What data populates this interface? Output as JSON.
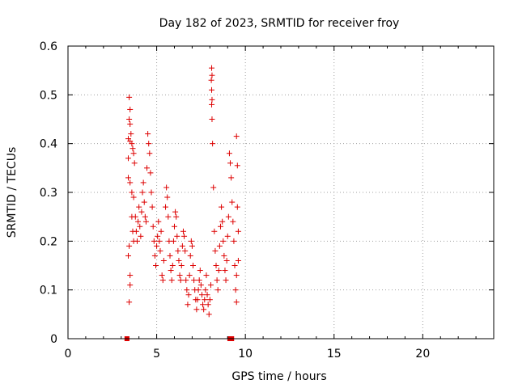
{
  "chart_data": {
    "type": "scatter",
    "title": "Day 182 of 2023, SRMTID for receiver froy",
    "xlabel": "GPS time / hours",
    "ylabel": "SRMTID / TECUs",
    "xlim": [
      0,
      24
    ],
    "ylim": [
      0,
      0.6
    ],
    "xticks": [
      0,
      5,
      10,
      15,
      20
    ],
    "xtick_labels": [
      "0",
      "5",
      "10",
      "15",
      "20"
    ],
    "yticks": [
      0,
      0.1,
      0.2,
      0.3,
      0.4,
      0.5,
      0.6
    ],
    "ytick_labels": [
      "0",
      "0.1",
      "0.2",
      "0.3",
      "0.4",
      "0.5",
      "0.6"
    ],
    "grid": true,
    "marker": "+",
    "colors": {
      "series": "#dd0000",
      "grid": "#a0a0a0",
      "axis": "#000000"
    },
    "series": [
      {
        "name": "SRMTID",
        "points": [
          [
            3.4,
            0.37
          ],
          [
            3.45,
            0.495
          ],
          [
            3.5,
            0.47
          ],
          [
            3.45,
            0.45
          ],
          [
            3.5,
            0.44
          ],
          [
            3.55,
            0.42
          ],
          [
            3.4,
            0.41
          ],
          [
            3.5,
            0.405
          ],
          [
            3.6,
            0.4
          ],
          [
            3.65,
            0.39
          ],
          [
            3.7,
            0.38
          ],
          [
            3.75,
            0.36
          ],
          [
            3.4,
            0.33
          ],
          [
            3.5,
            0.32
          ],
          [
            3.6,
            0.3
          ],
          [
            3.7,
            0.29
          ],
          [
            3.45,
            0.19
          ],
          [
            3.4,
            0.17
          ],
          [
            3.5,
            0.13
          ],
          [
            3.5,
            0.11
          ],
          [
            3.45,
            0.075
          ],
          [
            3.6,
            0.25
          ],
          [
            3.65,
            0.22
          ],
          [
            3.7,
            0.2
          ],
          [
            3.8,
            0.25
          ],
          [
            3.85,
            0.22
          ],
          [
            3.9,
            0.2
          ],
          [
            3.95,
            0.24
          ],
          [
            4.0,
            0.27
          ],
          [
            4.05,
            0.23
          ],
          [
            4.1,
            0.21
          ],
          [
            4.15,
            0.26
          ],
          [
            4.2,
            0.3
          ],
          [
            4.25,
            0.32
          ],
          [
            4.3,
            0.28
          ],
          [
            4.35,
            0.25
          ],
          [
            4.4,
            0.24
          ],
          [
            4.45,
            0.35
          ],
          [
            4.5,
            0.42
          ],
          [
            4.55,
            0.4
          ],
          [
            4.6,
            0.38
          ],
          [
            4.65,
            0.34
          ],
          [
            4.7,
            0.3
          ],
          [
            4.75,
            0.27
          ],
          [
            4.8,
            0.23
          ],
          [
            4.85,
            0.2
          ],
          [
            4.9,
            0.17
          ],
          [
            4.95,
            0.15
          ],
          [
            5.0,
            0.19
          ],
          [
            5.05,
            0.21
          ],
          [
            5.1,
            0.24
          ],
          [
            5.15,
            0.2
          ],
          [
            5.2,
            0.18
          ],
          [
            5.25,
            0.22
          ],
          [
            5.3,
            0.13
          ],
          [
            5.35,
            0.12
          ],
          [
            5.4,
            0.16
          ],
          [
            5.5,
            0.27
          ],
          [
            5.55,
            0.31
          ],
          [
            5.6,
            0.29
          ],
          [
            5.65,
            0.25
          ],
          [
            5.7,
            0.2
          ],
          [
            5.75,
            0.17
          ],
          [
            5.8,
            0.14
          ],
          [
            5.85,
            0.12
          ],
          [
            5.9,
            0.15
          ],
          [
            5.95,
            0.2
          ],
          [
            6.0,
            0.23
          ],
          [
            6.05,
            0.26
          ],
          [
            6.1,
            0.25
          ],
          [
            6.15,
            0.21
          ],
          [
            6.2,
            0.18
          ],
          [
            6.25,
            0.16
          ],
          [
            6.3,
            0.13
          ],
          [
            6.35,
            0.12
          ],
          [
            6.4,
            0.15
          ],
          [
            6.45,
            0.19
          ],
          [
            6.5,
            0.22
          ],
          [
            6.55,
            0.21
          ],
          [
            6.6,
            0.18
          ],
          [
            6.65,
            0.12
          ],
          [
            6.7,
            0.1
          ],
          [
            6.75,
            0.07
          ],
          [
            6.8,
            0.09
          ],
          [
            6.85,
            0.13
          ],
          [
            6.9,
            0.17
          ],
          [
            6.95,
            0.2
          ],
          [
            7.0,
            0.19
          ],
          [
            7.05,
            0.15
          ],
          [
            7.1,
            0.12
          ],
          [
            7.15,
            0.1
          ],
          [
            7.2,
            0.08
          ],
          [
            7.25,
            0.06
          ],
          [
            7.3,
            0.08
          ],
          [
            7.35,
            0.1
          ],
          [
            7.4,
            0.12
          ],
          [
            7.45,
            0.14
          ],
          [
            7.5,
            0.11
          ],
          [
            7.55,
            0.09
          ],
          [
            7.6,
            0.07
          ],
          [
            7.65,
            0.06
          ],
          [
            7.7,
            0.08
          ],
          [
            7.75,
            0.1
          ],
          [
            7.8,
            0.13
          ],
          [
            7.85,
            0.09
          ],
          [
            7.9,
            0.07
          ],
          [
            7.95,
            0.05
          ],
          [
            8.0,
            0.08
          ],
          [
            8.05,
            0.11
          ],
          [
            8.1,
            0.555
          ],
          [
            8.12,
            0.54
          ],
          [
            8.08,
            0.53
          ],
          [
            8.1,
            0.51
          ],
          [
            8.12,
            0.49
          ],
          [
            8.1,
            0.48
          ],
          [
            8.12,
            0.45
          ],
          [
            8.15,
            0.4
          ],
          [
            8.2,
            0.31
          ],
          [
            8.25,
            0.22
          ],
          [
            8.3,
            0.18
          ],
          [
            8.35,
            0.15
          ],
          [
            8.4,
            0.12
          ],
          [
            8.45,
            0.1
          ],
          [
            8.5,
            0.14
          ],
          [
            8.55,
            0.19
          ],
          [
            8.6,
            0.23
          ],
          [
            8.65,
            0.27
          ],
          [
            8.7,
            0.24
          ],
          [
            8.75,
            0.2
          ],
          [
            8.8,
            0.17
          ],
          [
            8.85,
            0.14
          ],
          [
            8.9,
            0.12
          ],
          [
            8.95,
            0.16
          ],
          [
            9.0,
            0.21
          ],
          [
            9.05,
            0.25
          ],
          [
            9.1,
            0.38
          ],
          [
            9.15,
            0.36
          ],
          [
            9.2,
            0.33
          ],
          [
            9.25,
            0.28
          ],
          [
            9.3,
            0.24
          ],
          [
            9.35,
            0.2
          ],
          [
            9.4,
            0.15
          ],
          [
            9.45,
            0.1
          ],
          [
            9.5,
            0.075
          ],
          [
            9.5,
            0.415
          ],
          [
            9.55,
            0.355
          ],
          [
            9.55,
            0.27
          ],
          [
            9.6,
            0.22
          ],
          [
            9.6,
            0.16
          ],
          [
            9.5,
            0.13
          ],
          [
            3.3,
            0.0
          ],
          [
            3.35,
            0.0
          ],
          [
            9.1,
            0.0
          ],
          [
            9.15,
            0.0
          ],
          [
            9.2,
            0.0
          ],
          [
            9.25,
            0.0
          ]
        ]
      }
    ]
  }
}
